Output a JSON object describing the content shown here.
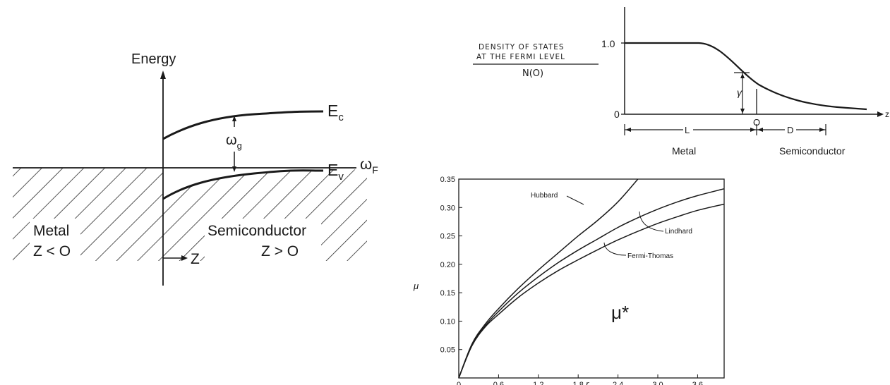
{
  "band_diagram": {
    "energy_label": "Energy",
    "ec_label": "E",
    "ec_sub": "c",
    "ev_label": "E",
    "ev_sub": "v",
    "omega_f_label": "ω",
    "omega_f_sub": "F",
    "omega_g_label": "ω",
    "omega_g_sub": "g",
    "metal_label": "Metal",
    "metal_cond": "Z < O",
    "semi_label": "Semiconductor",
    "semi_cond": "Z > O",
    "z_label": "Z"
  },
  "dos_diagram": {
    "ylabel_line1": "DENSITY OF STATES",
    "ylabel_line2": "AT THE FERMI LEVEL",
    "ylabel_denominator": "N(O)",
    "tick_one": "1.0",
    "tick_zero": "0",
    "origin_label": "O",
    "z_label": "z",
    "gamma_label": "γ",
    "L_label": "L",
    "D_label": "D",
    "metal_label": "Metal",
    "semi_label": "Semiconductor"
  },
  "chart_data": {
    "type": "line",
    "xlabel": "r",
    "xlabel_sub": "s",
    "ylabel": "μ",
    "annotation": "μ*",
    "xlim": [
      0,
      4.0
    ],
    "ylim": [
      0,
      0.35
    ],
    "x_ticks": [
      "0",
      "0.6",
      "1.2",
      "1.8",
      "2.4",
      "3.0",
      "3.6"
    ],
    "y_ticks": [
      "0.05",
      "0.10",
      "0.15",
      "0.20",
      "0.25",
      "0.30",
      "0.35"
    ],
    "series": [
      {
        "name": "Hubbard",
        "x": [
          0,
          0.2,
          0.4,
          0.6,
          0.9,
          1.2,
          1.5,
          1.8,
          2.1,
          2.4,
          2.7
        ],
        "y": [
          0.0,
          0.06,
          0.095,
          0.122,
          0.158,
          0.19,
          0.22,
          0.25,
          0.278,
          0.31,
          0.35
        ]
      },
      {
        "name": "Lindhard",
        "x": [
          0,
          0.2,
          0.4,
          0.6,
          0.9,
          1.2,
          1.5,
          1.8,
          2.1,
          2.4,
          2.7,
          3.0,
          3.3,
          3.6,
          4.0
        ],
        "y": [
          0.0,
          0.058,
          0.092,
          0.117,
          0.15,
          0.178,
          0.203,
          0.225,
          0.245,
          0.265,
          0.282,
          0.297,
          0.31,
          0.321,
          0.333
        ]
      },
      {
        "name": "Fermi-Thomas",
        "x": [
          0,
          0.2,
          0.4,
          0.6,
          0.9,
          1.2,
          1.5,
          1.8,
          2.1,
          2.4,
          2.7,
          3.0,
          3.3,
          3.6,
          4.0
        ],
        "y": [
          0.0,
          0.057,
          0.09,
          0.112,
          0.142,
          0.167,
          0.189,
          0.208,
          0.226,
          0.243,
          0.258,
          0.272,
          0.284,
          0.295,
          0.306
        ]
      }
    ]
  }
}
